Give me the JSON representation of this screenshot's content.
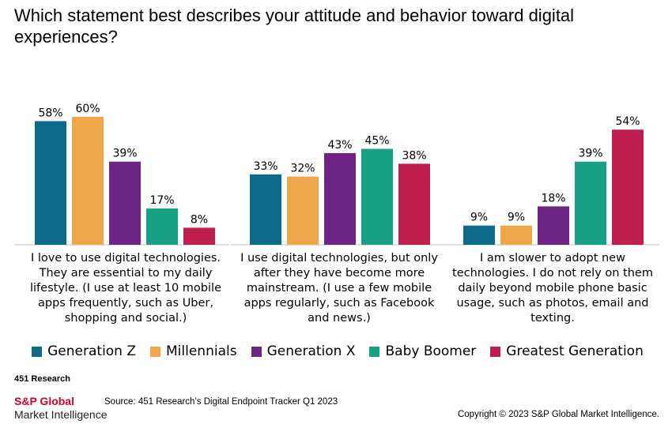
{
  "chart_data": {
    "type": "bar",
    "title": "Which statement best describes your attitude and behavior toward digital experiences?",
    "categories": [
      "I love to use digital technologies. They are essential to my daily lifestyle. (I use at least 10 mobile apps frequently, such as Uber, shopping and social.)",
      "I use digital technologies, but only after they have become more mainstream. (I use a few mobile apps regularly, such as Facebook and news.)",
      "I am slower to adopt new technologies. I do not rely on them daily beyond mobile phone basic usage, such as photos, email and texting."
    ],
    "series": [
      {
        "name": "Generation Z",
        "color": "#0e6a8a",
        "values": [
          58,
          33,
          9
        ]
      },
      {
        "name": "Millennials",
        "color": "#f0a74a",
        "values": [
          60,
          32,
          9
        ]
      },
      {
        "name": "Generation X",
        "color": "#6e2484",
        "values": [
          39,
          43,
          18
        ]
      },
      {
        "name": "Baby Boomer",
        "color": "#17a184",
        "values": [
          17,
          45,
          39
        ]
      },
      {
        "name": "Greatest Generation",
        "color": "#bf1f4e",
        "values": [
          8,
          38,
          54
        ]
      }
    ],
    "value_suffix": "%",
    "ylim": [
      0,
      60
    ],
    "grid": false,
    "legend_position": "bottom"
  },
  "footer": {
    "research_label": "451 Research",
    "brand_name": "S&P Global",
    "brand_sub": "Market Intelligence",
    "source": "Source: 451 Research’s Digital Endpoint Tracker Q1 2023",
    "copyright": "Copyright © 2023 S&P Global Market Intelligence."
  }
}
